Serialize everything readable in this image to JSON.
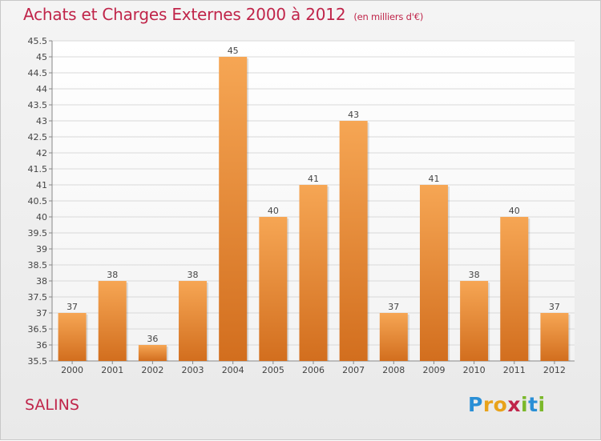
{
  "header": {
    "title": "Achats et Charges Externes 2000 à 2012",
    "subtitle": "(en milliers d'€)"
  },
  "footer": {
    "commune": "SALINS",
    "logo_text": "Proxiti"
  },
  "colors": {
    "title": "#c0254a",
    "bar_top": "#f6a654",
    "bar_bottom": "#d26e1e",
    "grid": "#d9d9d9"
  },
  "chart_data": {
    "type": "bar",
    "title": "Achats et Charges Externes 2000 à 2012",
    "subtitle": "(en milliers d'€)",
    "categories": [
      "2000",
      "2001",
      "2002",
      "2003",
      "2004",
      "2005",
      "2006",
      "2007",
      "2008",
      "2009",
      "2010",
      "2011",
      "2012"
    ],
    "values": [
      37,
      38,
      36,
      38,
      45,
      40,
      41,
      43,
      37,
      41,
      38,
      40,
      37
    ],
    "ylim": [
      35.5,
      45.5
    ],
    "ytick_step": 0.5,
    "grid": true,
    "data_labels": true
  }
}
